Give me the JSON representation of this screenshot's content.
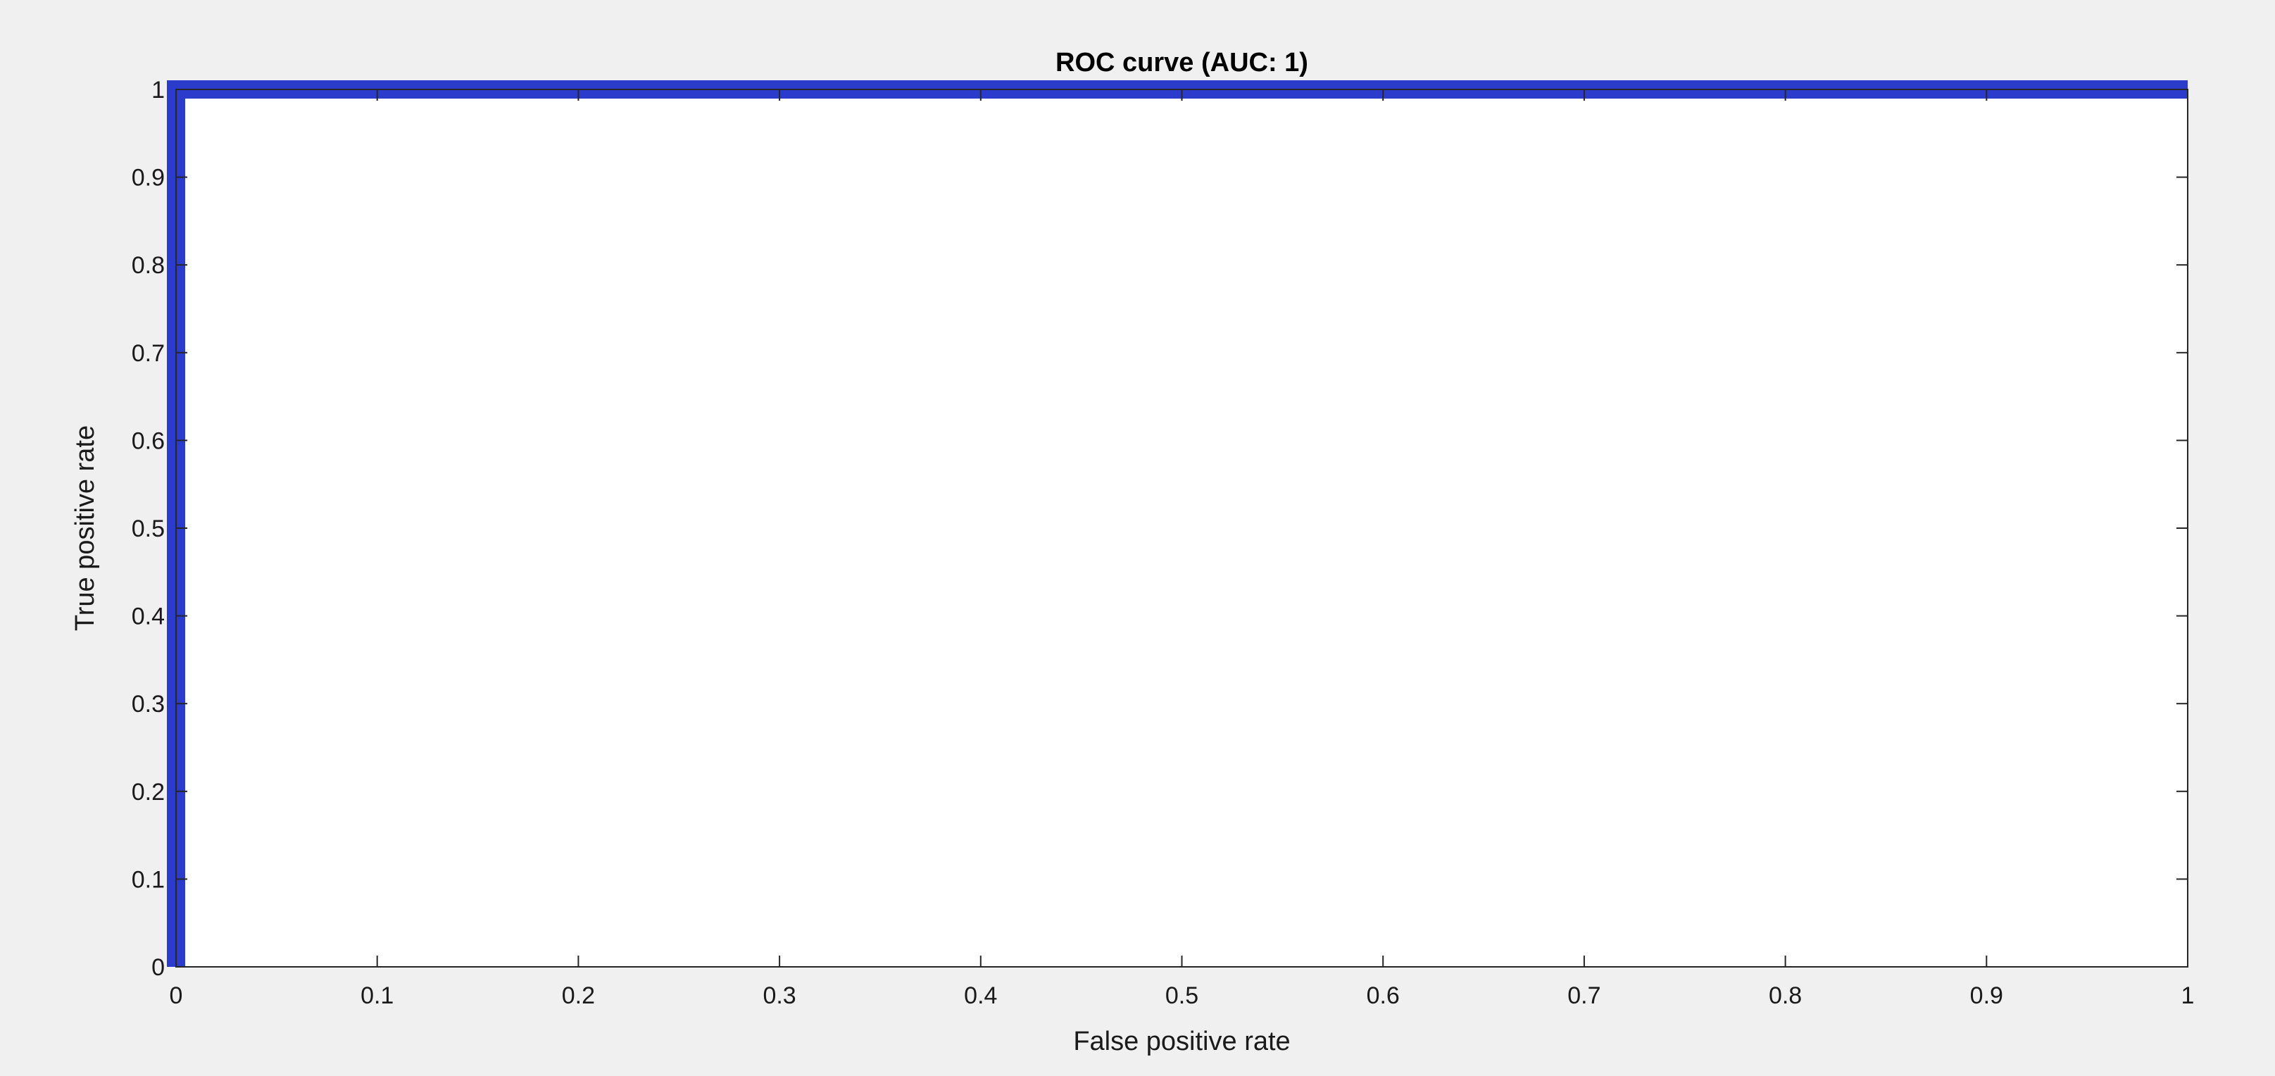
{
  "chart_data": {
    "type": "line",
    "title": "ROC curve (AUC: 1)",
    "xlabel": "False positive rate",
    "ylabel": "True positive rate",
    "xlim": [
      0,
      1
    ],
    "ylim": [
      0,
      1
    ],
    "x_ticks": [
      0,
      0.1,
      0.2,
      0.3,
      0.4,
      0.5,
      0.6,
      0.7,
      0.8,
      0.9,
      1
    ],
    "x_tick_labels": [
      "0",
      "0.1",
      "0.2",
      "0.3",
      "0.4",
      "0.5",
      "0.6",
      "0.7",
      "0.8",
      "0.9",
      "1"
    ],
    "y_ticks": [
      0,
      0.1,
      0.2,
      0.3,
      0.4,
      0.5,
      0.6,
      0.7,
      0.8,
      0.9,
      1
    ],
    "y_tick_labels": [
      "0",
      "0.1",
      "0.2",
      "0.3",
      "0.4",
      "0.5",
      "0.6",
      "0.7",
      "0.8",
      "0.9",
      "1"
    ],
    "grid": false,
    "legend": "none",
    "series": [
      {
        "x": [
          0,
          0,
          1
        ],
        "y": [
          0,
          1,
          1
        ],
        "color": "#2b3ccc"
      }
    ],
    "colors": {
      "background": "#f0f0f0",
      "plot_background": "#ffffff",
      "axis": "#262626",
      "line": "#2b3ccc"
    }
  }
}
